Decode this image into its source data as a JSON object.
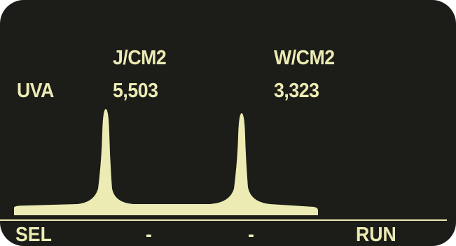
{
  "display": {
    "channel_label": "UVA",
    "columns": [
      {
        "unit": "J/CM2",
        "value": "5,503"
      },
      {
        "unit": "W/CM2",
        "value": "3,323"
      }
    ],
    "spectrum": {
      "peak_count": 2,
      "fill_color": "#ecebb4",
      "background_color": "#1c1c18"
    }
  },
  "softkeys": [
    {
      "label": "SEL"
    },
    {
      "label": "-"
    },
    {
      "label": "-"
    },
    {
      "label": "RUN"
    }
  ]
}
